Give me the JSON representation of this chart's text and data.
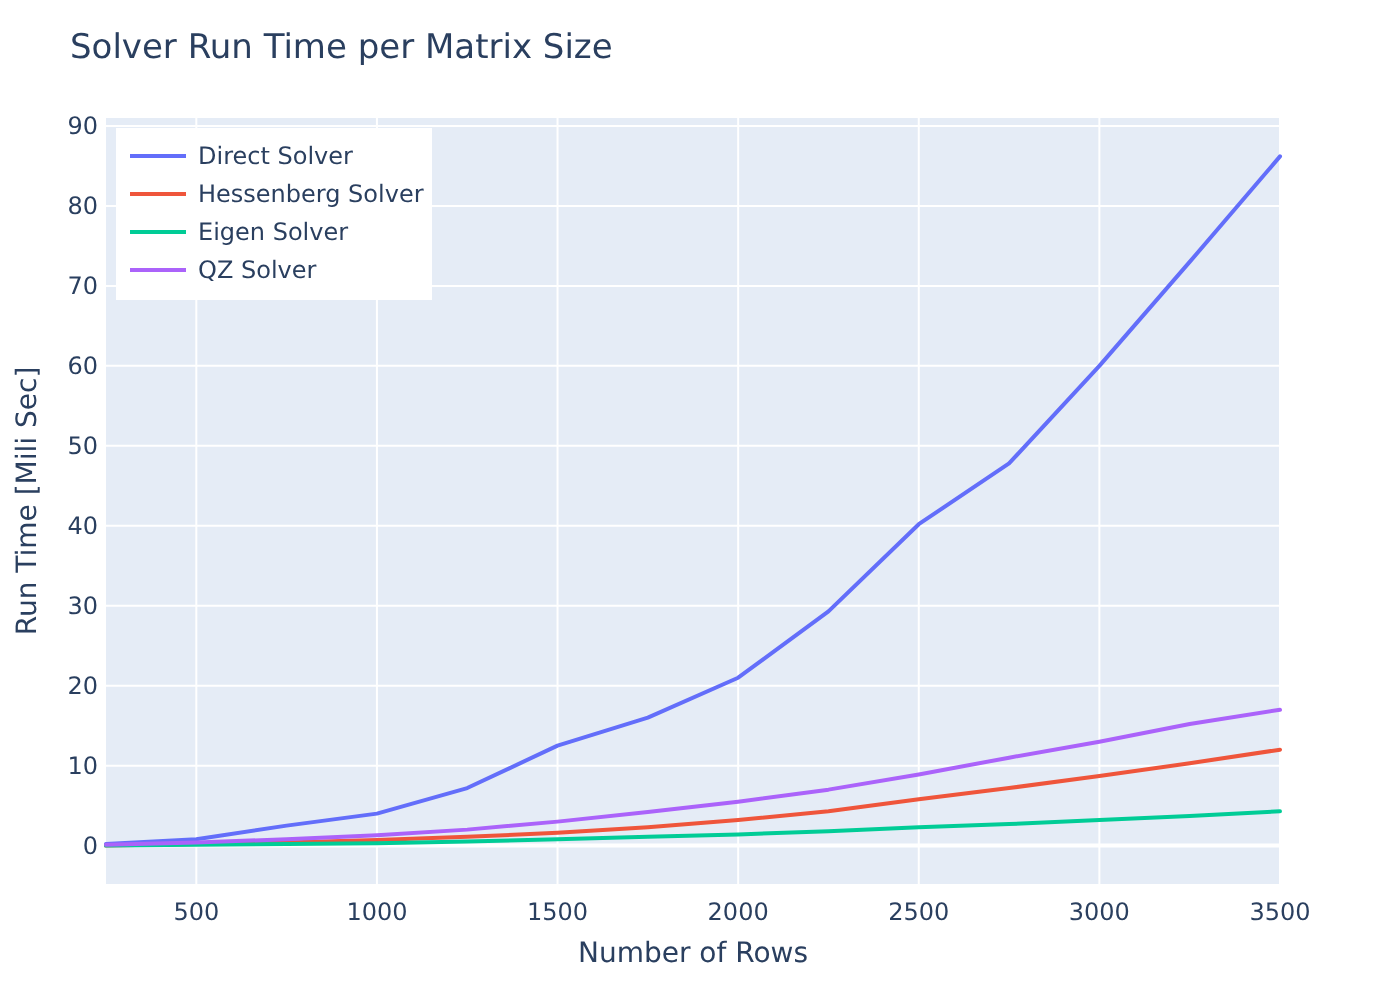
{
  "chart_data": {
    "type": "line",
    "title": "Solver Run Time per Matrix Size",
    "xlabel": "Number of Rows",
    "ylabel": "Run Time [Mili Sec]",
    "x": [
      250,
      500,
      750,
      1000,
      1250,
      1500,
      1750,
      2000,
      2250,
      2500,
      2750,
      3000,
      3250,
      3500
    ],
    "series": [
      {
        "name": "Direct Solver",
        "color": "#636efa",
        "values": [
          0.2,
          0.8,
          2.5,
          4,
          7.2,
          12.5,
          16,
          21,
          29.3,
          40.2,
          47.8,
          60,
          73,
          86.2
        ]
      },
      {
        "name": "Hessenberg Solver",
        "color": "#ef553b",
        "values": [
          0,
          0.2,
          0.4,
          0.7,
          1.1,
          1.6,
          2.3,
          3.2,
          4.3,
          5.8,
          7.2,
          8.7,
          10.3,
          12
        ]
      },
      {
        "name": "Eigen Solver",
        "color": "#00cc96",
        "values": [
          0,
          0.1,
          0.2,
          0.3,
          0.5,
          0.8,
          1.1,
          1.4,
          1.8,
          2.3,
          2.7,
          3.2,
          3.7,
          4.3
        ]
      },
      {
        "name": "QZ Solver",
        "color": "#ab63fa",
        "values": [
          0.1,
          0.4,
          0.8,
          1.3,
          2,
          3,
          4.2,
          5.5,
          7,
          8.9,
          11,
          13,
          15.2,
          17
        ]
      }
    ],
    "xlim": [
      250,
      3500
    ],
    "xticks": [
      500,
      1000,
      1500,
      2000,
      2500,
      3000,
      3500
    ],
    "ylim": [
      -4.8,
      91
    ],
    "yticks": [
      0,
      10,
      20,
      30,
      40,
      50,
      60,
      70,
      80,
      90
    ],
    "grid": true,
    "legend": "top left",
    "marker": "none",
    "line_style": "solid"
  }
}
